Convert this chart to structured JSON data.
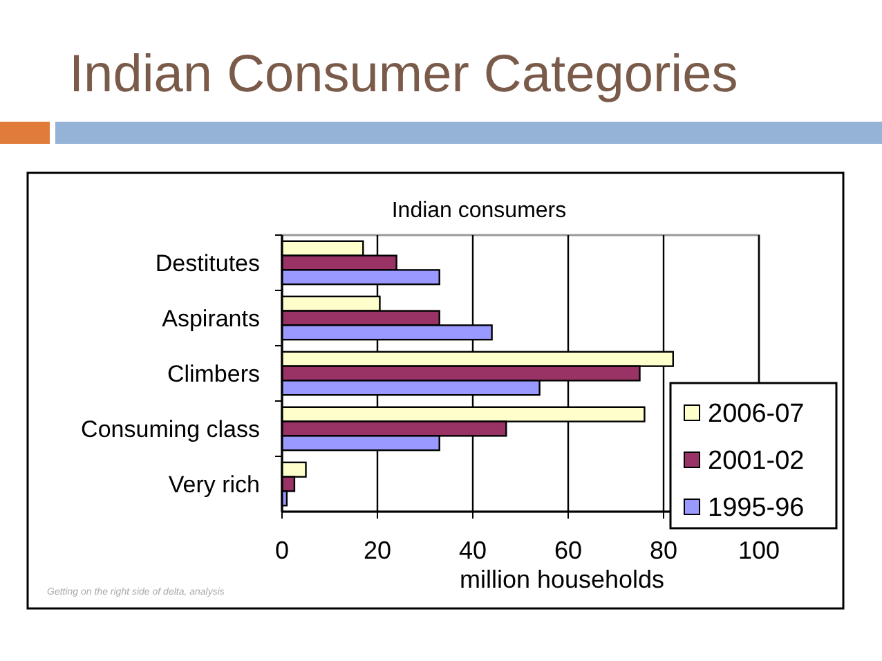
{
  "chart_data": {
    "type": "bar",
    "orientation": "horizontal",
    "title": "Indian Consumer Categories",
    "subtitle": "Indian consumers",
    "xlabel": "million households",
    "categories": [
      "Destitutes",
      "Aspirants",
      "Climbers",
      "Consuming class",
      "Very rich"
    ],
    "series": [
      {
        "name": "2006-07",
        "color": "#ffffcc",
        "values": [
          17,
          20.5,
          82,
          76,
          5
        ]
      },
      {
        "name": "2001-02",
        "color": "#993366",
        "values": [
          24,
          33,
          75,
          47,
          2.6
        ]
      },
      {
        "name": "1995-96",
        "color": "#9999ff",
        "values": [
          33,
          44,
          54,
          33,
          1
        ]
      }
    ],
    "xlim": [
      0,
      100
    ],
    "xticks": [
      0,
      20,
      40,
      60,
      80,
      100
    ],
    "grid": "x",
    "legend": "right",
    "annotations": [
      "Getting on the right side of delta, analysis"
    ]
  }
}
